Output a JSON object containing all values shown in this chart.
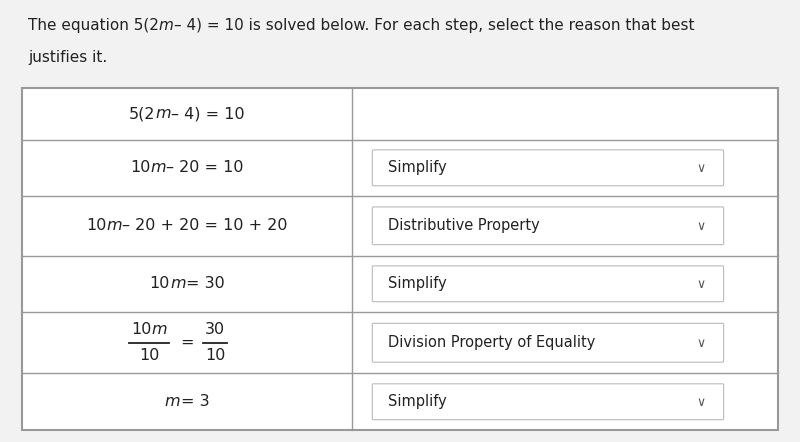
{
  "background_color": "#f2f2f2",
  "table_bg": "#ffffff",
  "border_color": "#999999",
  "text_color": "#222222",
  "dropdown_box_facecolor": "#ffffff",
  "dropdown_border": "#bbbbbb",
  "header_line1": "The equation 5(2m – 4) = 10 is solved below. For each step, select the reason that best",
  "header_line2": "justifies it.",
  "rows": [
    {
      "left_parts": [
        [
          "5(2",
          false
        ],
        [
          "m",
          true
        ],
        [
          "– 4) = 10",
          false
        ]
      ],
      "right": "",
      "has_dropdown": false
    },
    {
      "left_parts": [
        [
          "10",
          false
        ],
        [
          "m",
          true
        ],
        [
          "– 20 = 10",
          false
        ]
      ],
      "right": "Simplify",
      "has_dropdown": true
    },
    {
      "left_parts": [
        [
          "10",
          false
        ],
        [
          "m",
          true
        ],
        [
          "– 20 + 20 = 10 + 20",
          false
        ]
      ],
      "right": "Distributive Property",
      "has_dropdown": true
    },
    {
      "left_parts": [
        [
          "10",
          false
        ],
        [
          "m",
          true
        ],
        [
          "= 30",
          false
        ]
      ],
      "right": "Simplify",
      "has_dropdown": true
    },
    {
      "left_parts": null,
      "right": "Division Property of Equality",
      "has_dropdown": true
    },
    {
      "left_parts": [
        [
          "m",
          true
        ],
        [
          "= 3",
          false
        ]
      ],
      "right": "Simplify",
      "has_dropdown": true
    }
  ],
  "fig_width": 8.0,
  "fig_height": 4.42,
  "dpi": 100
}
